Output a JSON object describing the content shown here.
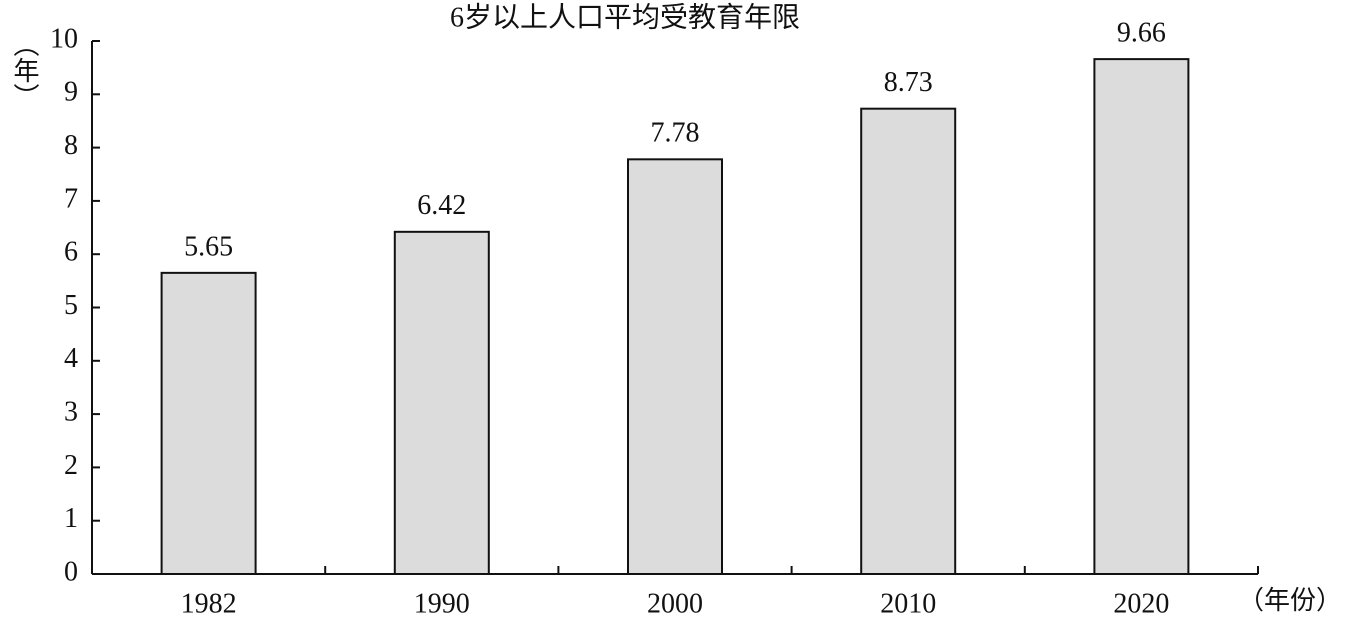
{
  "chart_data": {
    "type": "bar",
    "title": "6岁以上人口平均受教育年限",
    "y_label": "（年）",
    "x_label": "（年份）",
    "categories": [
      "1982",
      "1990",
      "2000",
      "2010",
      "2020"
    ],
    "values": [
      5.65,
      6.42,
      7.78,
      8.73,
      9.66
    ],
    "color": "#dcdcdc",
    "ylim": [
      0,
      10
    ],
    "yticks": [
      0,
      1,
      2,
      3,
      4,
      5,
      6,
      7,
      8,
      9,
      10
    ],
    "grid": false
  }
}
